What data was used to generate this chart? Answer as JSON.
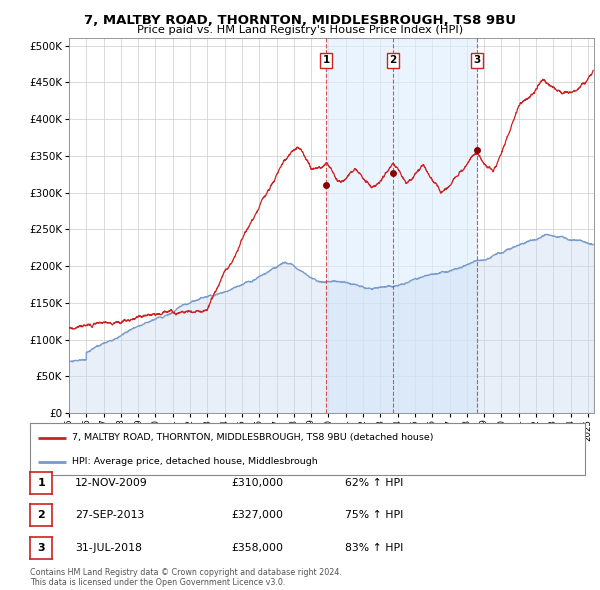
{
  "title": "7, MALTBY ROAD, THORNTON, MIDDLESBROUGH, TS8 9BU",
  "subtitle": "Price paid vs. HM Land Registry's House Price Index (HPI)",
  "red_color": "#cc0000",
  "blue_color": "#7799cc",
  "fill_blue_color": "#ccddf0",
  "shade_color": "#ddeeff",
  "background_color": "#ffffff",
  "grid_color": "#cccccc",
  "sale_points": [
    {
      "date_num": 2009.87,
      "price": 310000,
      "label": "1"
    },
    {
      "date_num": 2013.74,
      "price": 327000,
      "label": "2"
    },
    {
      "date_num": 2018.58,
      "price": 358000,
      "label": "3"
    }
  ],
  "vline_dates": [
    2009.87,
    2013.74,
    2018.58
  ],
  "legend_red_label": "7, MALTBY ROAD, THORNTON, MIDDLESBROUGH, TS8 9BU (detached house)",
  "legend_blue_label": "HPI: Average price, detached house, Middlesbrough",
  "table_rows": [
    {
      "num": "1",
      "date": "12-NOV-2009",
      "price": "£310,000",
      "pct": "62% ↑ HPI"
    },
    {
      "num": "2",
      "date": "27-SEP-2013",
      "price": "£327,000",
      "pct": "75% ↑ HPI"
    },
    {
      "num": "3",
      "date": "31-JUL-2018",
      "price": "£358,000",
      "pct": "83% ↑ HPI"
    }
  ],
  "footer": "Contains HM Land Registry data © Crown copyright and database right 2024.\nThis data is licensed under the Open Government Licence v3.0."
}
